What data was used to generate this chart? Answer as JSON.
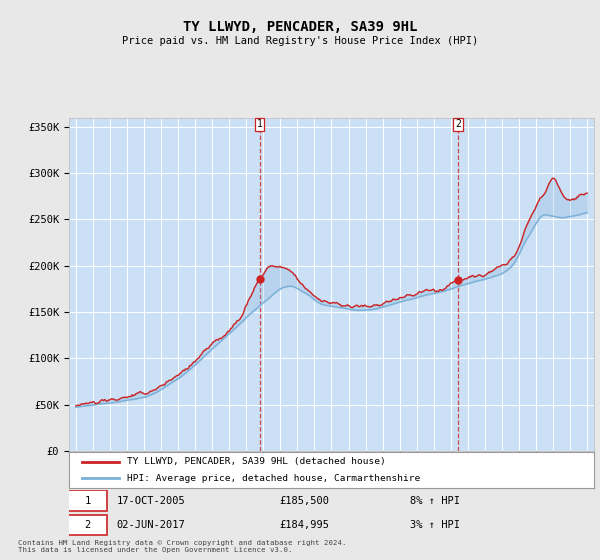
{
  "title": "TY LLWYD, PENCADER, SA39 9HL",
  "subtitle": "Price paid vs. HM Land Registry's House Price Index (HPI)",
  "ylim": [
    0,
    360000
  ],
  "yticks": [
    0,
    50000,
    100000,
    150000,
    200000,
    250000,
    300000,
    350000
  ],
  "ytick_labels": [
    "£0",
    "£50K",
    "£100K",
    "£150K",
    "£200K",
    "£250K",
    "£300K",
    "£350K"
  ],
  "fig_bg_color": "#e8e8e8",
  "plot_bg_color": "#cce0f5",
  "grid_color": "#ffffff",
  "hpi_color": "#7ab0d8",
  "price_color": "#cc2222",
  "sale1_date": "17-OCT-2005",
  "sale1_price": 185500,
  "sale1_price_fmt": "£185,500",
  "sale1_hpi": "8% ↑ HPI",
  "sale1_year": 2005.79,
  "sale2_date": "02-JUN-2017",
  "sale2_price": 184995,
  "sale2_price_fmt": "£184,995",
  "sale2_hpi": "3% ↑ HPI",
  "sale2_year": 2017.42,
  "footer": "Contains HM Land Registry data © Crown copyright and database right 2024.\nThis data is licensed under the Open Government Licence v3.0.",
  "legend_label1": "TY LLWYD, PENCADER, SA39 9HL (detached house)",
  "legend_label2": "HPI: Average price, detached house, Carmarthenshire"
}
